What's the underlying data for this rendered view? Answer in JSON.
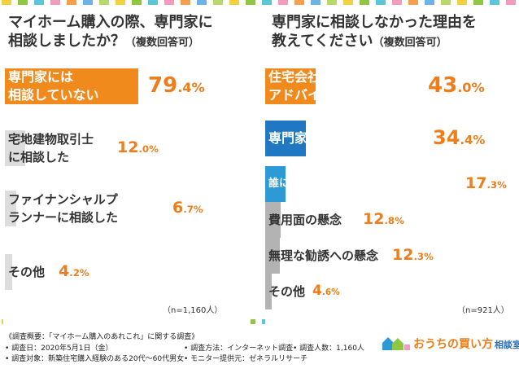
{
  "colors": {
    "orange": "#f08a1c",
    "blue": "#1f78c1",
    "lightblue": "#2d9ad6",
    "gray": "#b3b3b3",
    "lightgray": "#dddddd",
    "pct": "#ee7d1a",
    "dashes": [
      "#f3d03e",
      "#8fc742",
      "#5cc6d9",
      "#f29bbd",
      "#f6a04d",
      "#6db3e8",
      "#b9d86a"
    ]
  },
  "chart_data": [
    {
      "type": "bar",
      "orientation": "horizontal",
      "title": "マイホーム購入の際、専門家に相談しましたか？",
      "title_note": "（複数回答可）",
      "categories": [
        "専門家には相談していない",
        "宅地建物取引士に相談した",
        "ファイナンシャルプランナーに相談した",
        "その他"
      ],
      "values": [
        79.4,
        12.0,
        6.7,
        4.2
      ],
      "value_labels": [
        "79.4%",
        "12.0%",
        "6.7%",
        "4.2%"
      ],
      "n_label": "（n=1,160人）"
    },
    {
      "type": "bar",
      "orientation": "horizontal",
      "title": "専門家に相談しなかった理由を教えてください",
      "title_note": "（複数回答可）",
      "categories": [
        "住宅会社の営業担当者のアドバイスに従った",
        "専門家の存在を知らなかった",
        "誰に相談すればいいか分からなかった",
        "費用面の懸念",
        "無理な勧誘への懸念",
        "その他"
      ],
      "values": [
        43.0,
        34.4,
        17.3,
        12.8,
        12.3,
        4.6
      ],
      "value_labels": [
        "43.0%",
        "34.4%",
        "17.3%",
        "12.8%",
        "12.3%",
        "4.6%"
      ],
      "n_label": "（n=921人）"
    }
  ],
  "footer": {
    "line1": "《調査概要：「マイホーム購入のあれこれ」に関する調査》",
    "date": "• 調査日：2020年5月1日（金）",
    "target": "• 調査対象：新築住宅購入経験のある20代～60代男女",
    "method": "• 調査方法：インターネット調査",
    "monitor": "• モニター提供元：ゼネラルリサーチ",
    "count": "• 調査人数：1,160人"
  },
  "logo": {
    "text_main": "おうちの買い方",
    "text_sub": "相談室"
  }
}
